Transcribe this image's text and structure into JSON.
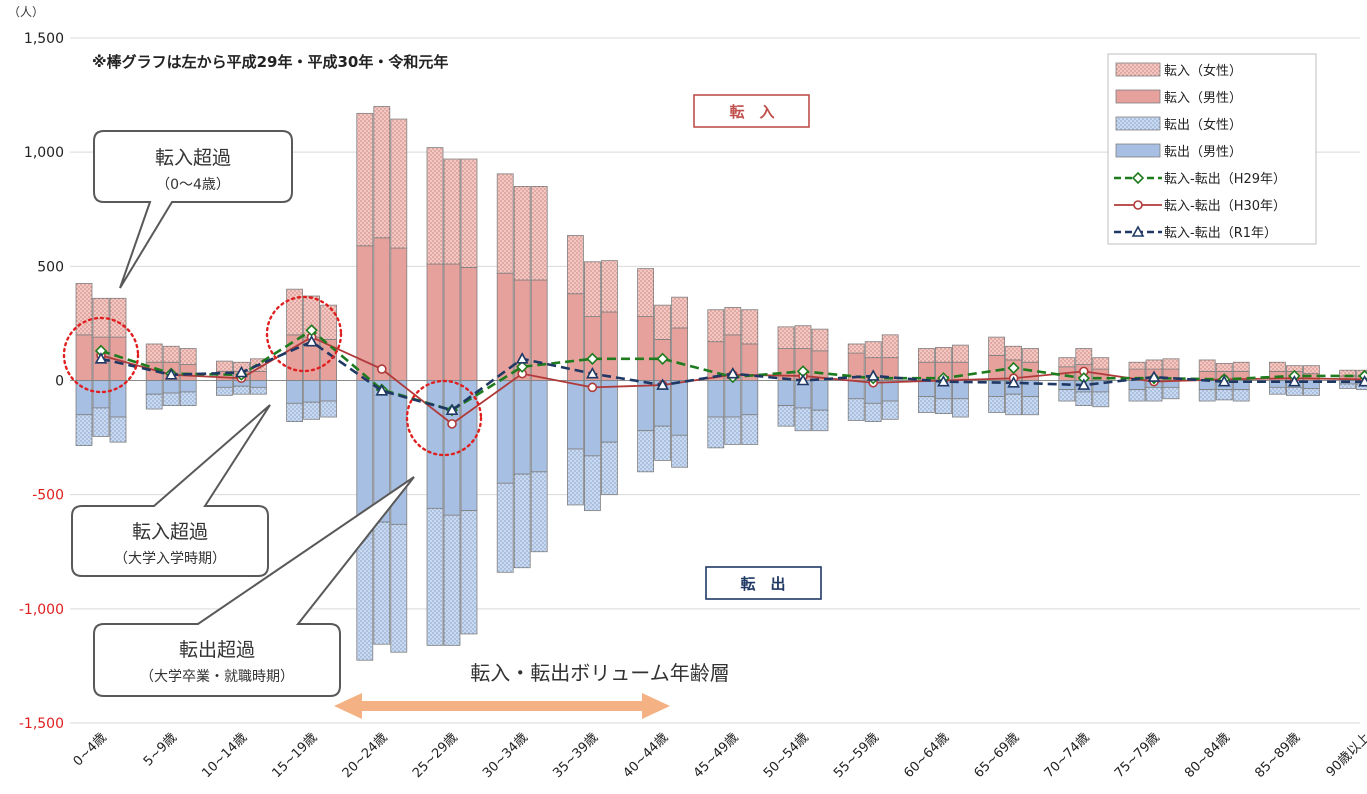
{
  "chart_data": {
    "type": "bar",
    "unit_label": "（人）",
    "note": "※棒グラフは左から平成29年・平成30年・令和元年",
    "ylim": [
      -1500,
      1500
    ],
    "y_ticks": [
      1500,
      1000,
      500,
      0,
      -500,
      -1000,
      -1500
    ],
    "y_tick_labels": [
      "1,500",
      "1,000",
      "500",
      "0",
      "-500",
      "-1,000",
      "-1,500"
    ],
    "grid": true,
    "legend_position": "top-right",
    "categories": [
      "0~4歳",
      "5~9歳",
      "10~14歳",
      "15~19歳",
      "20~24歳",
      "25~29歳",
      "30~34歳",
      "35~39歳",
      "40~44歳",
      "45~49歳",
      "50~54歳",
      "55~59歳",
      "60~64歳",
      "65~69歳",
      "70~74歳",
      "75~79歳",
      "80~84歳",
      "85~89歳",
      "90歳以上"
    ],
    "years": [
      "平成29年",
      "平成30年",
      "令和元年"
    ],
    "inflow_male": [
      [
        200,
        190,
        190
      ],
      [
        80,
        80,
        70
      ],
      [
        40,
        40,
        40
      ],
      [
        200,
        190,
        180
      ],
      [
        590,
        625,
        580
      ],
      [
        510,
        510,
        495
      ],
      [
        470,
        440,
        440
      ],
      [
        380,
        280,
        300
      ],
      [
        280,
        180,
        230
      ],
      [
        170,
        200,
        160
      ],
      [
        140,
        140,
        130
      ],
      [
        120,
        100,
        100
      ],
      [
        80,
        80,
        80
      ],
      [
        110,
        90,
        80
      ],
      [
        60,
        70,
        50
      ],
      [
        50,
        50,
        50
      ],
      [
        40,
        40,
        40
      ],
      [
        40,
        40,
        30
      ],
      [
        20,
        20,
        20
      ]
    ],
    "inflow_female": [
      [
        225,
        170,
        170
      ],
      [
        80,
        70,
        70
      ],
      [
        45,
        40,
        55
      ],
      [
        200,
        180,
        150
      ],
      [
        580,
        575,
        565
      ],
      [
        510,
        460,
        475
      ],
      [
        435,
        410,
        410
      ],
      [
        255,
        240,
        225
      ],
      [
        210,
        150,
        135
      ],
      [
        140,
        120,
        150
      ],
      [
        95,
        100,
        95
      ],
      [
        40,
        70,
        100
      ],
      [
        60,
        65,
        75
      ],
      [
        80,
        60,
        60
      ],
      [
        40,
        70,
        50
      ],
      [
        30,
        40,
        45
      ],
      [
        50,
        35,
        40
      ],
      [
        40,
        25,
        35
      ],
      [
        25,
        25,
        25
      ]
    ],
    "outflow_male": [
      [
        150,
        120,
        160
      ],
      [
        60,
        55,
        50
      ],
      [
        30,
        25,
        30
      ],
      [
        100,
        95,
        90
      ],
      [
        630,
        620,
        630
      ],
      [
        560,
        590,
        570
      ],
      [
        450,
        410,
        400
      ],
      [
        300,
        330,
        270
      ],
      [
        220,
        200,
        240
      ],
      [
        160,
        160,
        150
      ],
      [
        110,
        120,
        130
      ],
      [
        80,
        100,
        90
      ],
      [
        70,
        80,
        80
      ],
      [
        70,
        60,
        70
      ],
      [
        40,
        50,
        50
      ],
      [
        40,
        30,
        30
      ],
      [
        40,
        40,
        40
      ],
      [
        30,
        30,
        35
      ],
      [
        15,
        15,
        20
      ]
    ],
    "outflow_female": [
      [
        135,
        125,
        110
      ],
      [
        65,
        55,
        60
      ],
      [
        35,
        35,
        30
      ],
      [
        80,
        75,
        70
      ],
      [
        595,
        535,
        560
      ],
      [
        600,
        570,
        540
      ],
      [
        390,
        410,
        350
      ],
      [
        245,
        240,
        230
      ],
      [
        180,
        150,
        140
      ],
      [
        135,
        120,
        130
      ],
      [
        90,
        100,
        90
      ],
      [
        95,
        80,
        80
      ],
      [
        70,
        65,
        80
      ],
      [
        70,
        90,
        80
      ],
      [
        50,
        60,
        65
      ],
      [
        50,
        60,
        50
      ],
      [
        50,
        45,
        50
      ],
      [
        30,
        35,
        30
      ],
      [
        20,
        25,
        20
      ]
    ],
    "series": [
      {
        "name": "転入-転出(H29年)",
        "color": "#1e7b1e",
        "dash": "dashed",
        "marker": "diamond",
        "values": [
          130,
          30,
          25,
          220,
          -40,
          -130,
          60,
          95,
          95,
          15,
          40,
          10,
          10,
          55,
          10,
          10,
          5,
          20,
          20
        ]
      },
      {
        "name": "転入-転出(H30年)",
        "color": "#b03a3a",
        "dash": "solid",
        "marker": "circle",
        "values": [
          110,
          25,
          10,
          190,
          50,
          -190,
          30,
          -30,
          -20,
          25,
          20,
          -10,
          0,
          10,
          40,
          -5,
          5,
          10,
          5
        ]
      },
      {
        "name": "転入-転出(R1年)",
        "color": "#1f3864",
        "dash": "dashed",
        "marker": "triangle",
        "values": [
          95,
          25,
          35,
          170,
          -45,
          -130,
          95,
          30,
          -20,
          30,
          0,
          20,
          -5,
          -10,
          -20,
          15,
          -5,
          -5,
          -5
        ]
      }
    ],
    "legend": [
      {
        "label": "転入（女性）",
        "swatch": "inflow_female"
      },
      {
        "label": "転入（男性）",
        "swatch": "inflow_male"
      },
      {
        "label": "転出（女性）",
        "swatch": "outflow_female"
      },
      {
        "label": "転出（男性）",
        "swatch": "outflow_male"
      },
      {
        "label": "転入-転出（H29年）",
        "swatch": "line_h29"
      },
      {
        "label": "転入-転出（H30年）",
        "swatch": "line_h30"
      },
      {
        "label": "転入-転出（R1年）",
        "swatch": "line_r1"
      }
    ],
    "labels": {
      "inflow": "転　入",
      "outflow": "転　出"
    },
    "callouts": [
      {
        "title": "転入超過",
        "subtitle": "（0～4歳）"
      },
      {
        "title": "転入超過",
        "subtitle": "（大学入学時期）"
      },
      {
        "title": "転出超過",
        "subtitle": "（大学卒業・就職時期）"
      }
    ],
    "volume_label": "転入・転出ボリューム年齢層",
    "colors": {
      "inflow_male": "#e6a19c",
      "inflow_female": "#f3c7c2",
      "outflow_male": "#a7bfe2",
      "outflow_female": "#c9d9ef",
      "inflow_box": "#c0504d",
      "outflow_box": "#1f3864",
      "arrow": "#f4b183",
      "circle": "#e02020",
      "neg_tick": "#e02020"
    }
  }
}
